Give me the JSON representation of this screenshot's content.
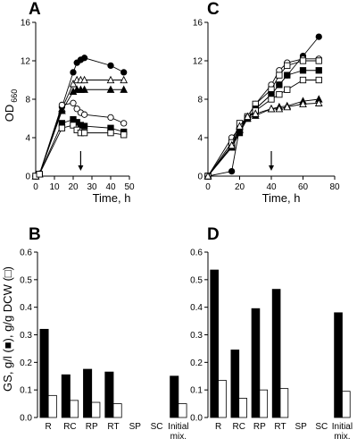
{
  "figure": {
    "ylabel_top": "OD",
    "ylabel_top_sub": "660",
    "ylabel_bottom": "GS, g/l (■), g/g DCW (□)",
    "colors": {
      "ink": "#000000",
      "bar_filled": "#000000",
      "bar_empty": "#ffffff"
    }
  },
  "chart_data": [
    {
      "panel": "A",
      "type": "line",
      "xlabel": "Time, h",
      "ylabel": "OD 660",
      "xlim": [
        0,
        50
      ],
      "ylim": [
        0,
        16
      ],
      "xticks": [
        0,
        10,
        20,
        30,
        40,
        50
      ],
      "yticks": [
        0,
        4,
        8,
        12,
        16
      ],
      "arrow_x": 24,
      "series": [
        {
          "marker": "filled-circle",
          "x": [
            0,
            2,
            14,
            20,
            22,
            24,
            26,
            40,
            47
          ],
          "y": [
            0,
            0.2,
            7.2,
            10.8,
            11.8,
            12.1,
            12.3,
            11.5,
            10.8
          ]
        },
        {
          "marker": "open-triangle",
          "x": [
            0,
            2,
            14,
            20,
            22,
            24,
            26,
            40,
            47
          ],
          "y": [
            0,
            0.2,
            7.0,
            9.6,
            10.0,
            10.0,
            10.0,
            10.0,
            10.0
          ]
        },
        {
          "marker": "filled-triangle",
          "x": [
            0,
            2,
            14,
            20,
            22,
            24,
            26,
            40,
            47
          ],
          "y": [
            0,
            0.2,
            6.8,
            8.8,
            9.0,
            9.0,
            9.0,
            9.0,
            9.0
          ]
        },
        {
          "marker": "open-circle",
          "x": [
            0,
            2,
            14,
            20,
            22,
            24,
            26,
            40,
            47
          ],
          "y": [
            0,
            0.2,
            7.4,
            7.6,
            7.0,
            6.6,
            6.4,
            6.1,
            5.5
          ]
        },
        {
          "marker": "filled-square",
          "x": [
            0,
            2,
            14,
            20,
            22,
            24,
            26,
            40,
            47
          ],
          "y": [
            0,
            0.2,
            5.5,
            5.9,
            5.6,
            5.3,
            5.2,
            5.0,
            4.6
          ]
        },
        {
          "marker": "open-square",
          "x": [
            0,
            2,
            14,
            20,
            22,
            24,
            26,
            40,
            47
          ],
          "y": [
            0,
            0.2,
            5.0,
            5.3,
            4.8,
            4.5,
            4.5,
            4.5,
            4.3
          ]
        }
      ]
    },
    {
      "panel": "C",
      "type": "line",
      "xlabel": "Time, h",
      "ylabel": "",
      "xlim": [
        0,
        80
      ],
      "ylim": [
        0,
        16
      ],
      "xticks": [
        0,
        20,
        40,
        60,
        80
      ],
      "yticks": [
        0,
        4,
        8,
        12,
        16
      ],
      "arrow_x": 40,
      "series": [
        {
          "marker": "filled-circle",
          "x": [
            0,
            15,
            20,
            25,
            30,
            40,
            45,
            50,
            60,
            70
          ],
          "y": [
            0,
            0.5,
            5.0,
            6.0,
            7.0,
            8.5,
            9.5,
            10.5,
            12.5,
            14.5
          ]
        },
        {
          "marker": "open-circle",
          "x": [
            0,
            15,
            20,
            25,
            30,
            40,
            45,
            50,
            60,
            70
          ],
          "y": [
            0,
            4.0,
            5.0,
            6.2,
            7.5,
            9.5,
            11.0,
            11.8,
            12.2,
            12.2
          ]
        },
        {
          "marker": "open-square",
          "x": [
            0,
            15,
            20,
            25,
            30,
            40,
            45,
            50,
            60,
            70
          ],
          "y": [
            0,
            3.2,
            4.8,
            6.2,
            7.5,
            9.0,
            10.5,
            11.5,
            12.0,
            12.0
          ]
        },
        {
          "marker": "filled-square",
          "x": [
            0,
            15,
            20,
            25,
            30,
            40,
            45,
            50,
            60,
            70
          ],
          "y": [
            0,
            3.0,
            4.5,
            6.0,
            7.0,
            8.5,
            9.5,
            10.5,
            11.0,
            11.0
          ]
        },
        {
          "marker": "open-square-2",
          "x": [
            0,
            15,
            20,
            25,
            30,
            40,
            45,
            50,
            60,
            70
          ],
          "y": [
            0,
            3.5,
            5.5,
            6.0,
            6.8,
            8.0,
            8.5,
            9.0,
            10.0,
            10.0
          ]
        },
        {
          "marker": "filled-triangle",
          "x": [
            0,
            15,
            20,
            25,
            30,
            40,
            45,
            50,
            60,
            70
          ],
          "y": [
            0,
            3.0,
            4.8,
            6.0,
            6.3,
            7.0,
            7.2,
            7.3,
            7.8,
            8.0
          ]
        },
        {
          "marker": "open-triangle",
          "x": [
            0,
            15,
            20,
            25,
            30,
            40,
            45,
            50,
            60,
            70
          ],
          "y": [
            0,
            3.2,
            5.2,
            6.2,
            6.5,
            7.0,
            7.0,
            7.2,
            7.5,
            7.6
          ]
        }
      ]
    },
    {
      "panel": "B",
      "type": "bar",
      "ylabel": "GS, g/l (■), g/g DCW (□)",
      "ylim": [
        0,
        0.6
      ],
      "yticks": [
        0,
        0.1,
        0.2,
        0.3,
        0.4,
        0.5,
        0.6
      ],
      "categories": [
        "R",
        "RC",
        "RP",
        "RT",
        "SP",
        "SC",
        "Initial mix."
      ],
      "series": [
        {
          "name": "GS, g/l",
          "style": "filled",
          "values": [
            0.32,
            0.155,
            0.175,
            0.165,
            0,
            0,
            0.15
          ]
        },
        {
          "name": "g/g DCW",
          "style": "open",
          "values": [
            0.08,
            0.062,
            0.055,
            0.05,
            0,
            0,
            0.05
          ]
        }
      ]
    },
    {
      "panel": "D",
      "type": "bar",
      "ylabel": "",
      "ylim": [
        0,
        0.6
      ],
      "yticks": [
        0,
        0.1,
        0.2,
        0.3,
        0.4,
        0.5,
        0.6
      ],
      "categories": [
        "R",
        "RC",
        "RP",
        "RT",
        "SP",
        "SC",
        "Initial mix."
      ],
      "series": [
        {
          "name": "GS, g/l",
          "style": "filled",
          "values": [
            0.535,
            0.245,
            0.395,
            0.465,
            0,
            0,
            0.38
          ]
        },
        {
          "name": "g/g DCW",
          "style": "open",
          "values": [
            0.135,
            0.07,
            0.1,
            0.105,
            0,
            0,
            0.095
          ]
        }
      ]
    }
  ]
}
